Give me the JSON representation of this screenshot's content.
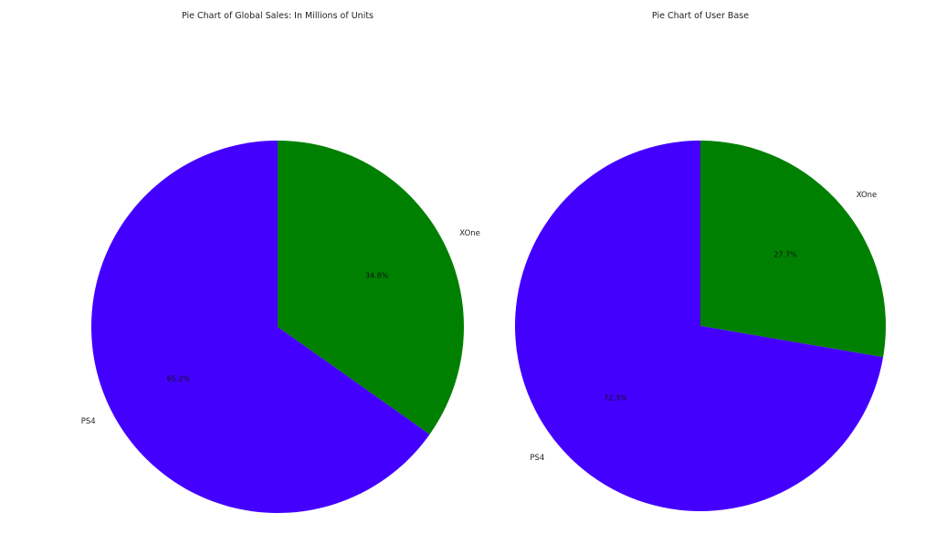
{
  "chart_data": [
    {
      "type": "pie",
      "title": "Pie Chart of Global Sales: In Millions of Units",
      "categories": [
        "XOne",
        "PS4"
      ],
      "values": [
        34.8,
        65.2
      ],
      "value_labels": [
        "34.8%",
        "65.2%"
      ],
      "colors": [
        "#008000",
        "#4400ff"
      ],
      "start": "12 o'clock",
      "direction": "clockwise"
    },
    {
      "type": "pie",
      "title": "Pie Chart of User Base",
      "categories": [
        "XOne",
        "PS4"
      ],
      "values": [
        27.7,
        72.3
      ],
      "value_labels": [
        "27.7%",
        "72.3%"
      ],
      "colors": [
        "#008000",
        "#4400ff"
      ],
      "start": "12 o'clock",
      "direction": "clockwise"
    }
  ]
}
